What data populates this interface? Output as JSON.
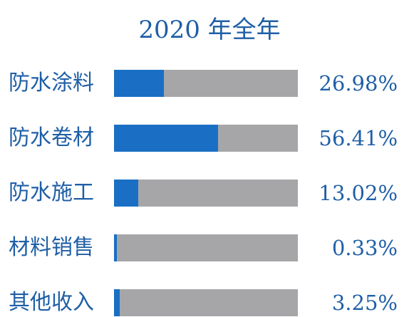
{
  "chart_data": {
    "type": "bar",
    "orientation": "horizontal",
    "title": "2020 年全年",
    "categories": [
      "防水涂料",
      "防水卷材",
      "防水施工",
      "材料销售",
      "其他收入"
    ],
    "values": [
      26.98,
      56.41,
      13.02,
      0.33,
      3.25
    ],
    "value_labels": [
      "26.98%",
      "56.41%",
      "13.02%",
      "0.33%",
      "3.25%"
    ],
    "xlim": [
      0,
      100
    ],
    "colors": {
      "fill": "#1a6fc4",
      "track": "#a6a6a8",
      "text": "#1f5fa6"
    },
    "grid": false,
    "legend": "none"
  }
}
